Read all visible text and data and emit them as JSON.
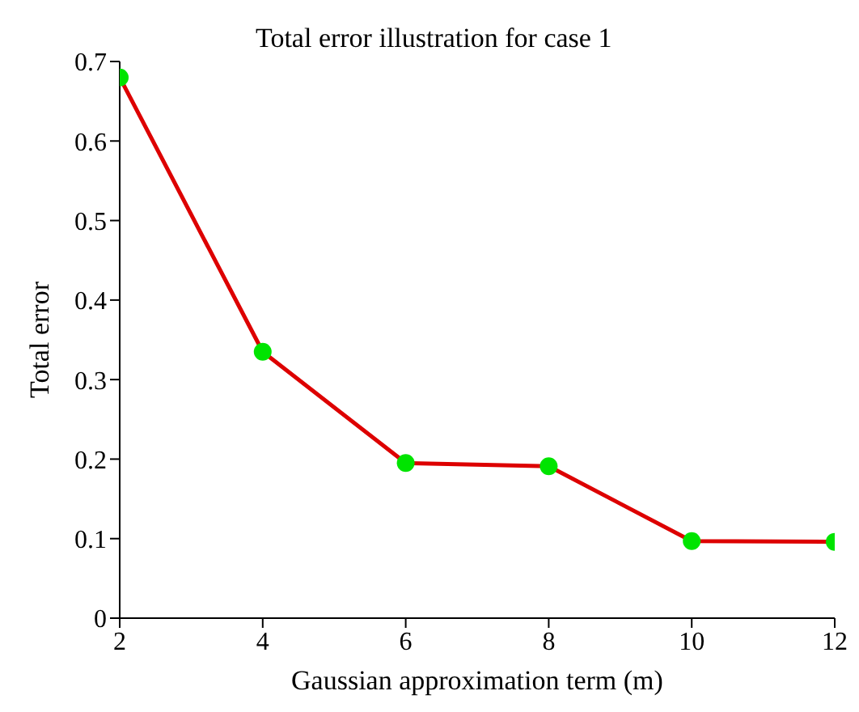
{
  "chart_data": {
    "type": "line",
    "title": "Total error illustration for case 1",
    "xlabel": "Gaussian approximation term (m)",
    "ylabel": "Total error",
    "x": [
      2,
      4,
      6,
      8,
      10,
      12
    ],
    "series": [
      {
        "color": "#dd0000",
        "colors": [
          "#00e400",
          "#00e400",
          "#00e400",
          "#00e400",
          "#00e400",
          "#00e400"
        ],
        "values": [
          0.68,
          0.335,
          0.195,
          0.191,
          0.097,
          0.096
        ]
      }
    ],
    "marker": "circle",
    "line_style": "solid",
    "xlim": [
      2,
      12
    ],
    "xticks": [
      2,
      4,
      6,
      8,
      10,
      12
    ],
    "ylim": [
      0,
      0.7
    ],
    "yticks": [
      0,
      0.1,
      0.2,
      0.3,
      0.4,
      0.5,
      0.6,
      0.7
    ],
    "grid": false
  }
}
